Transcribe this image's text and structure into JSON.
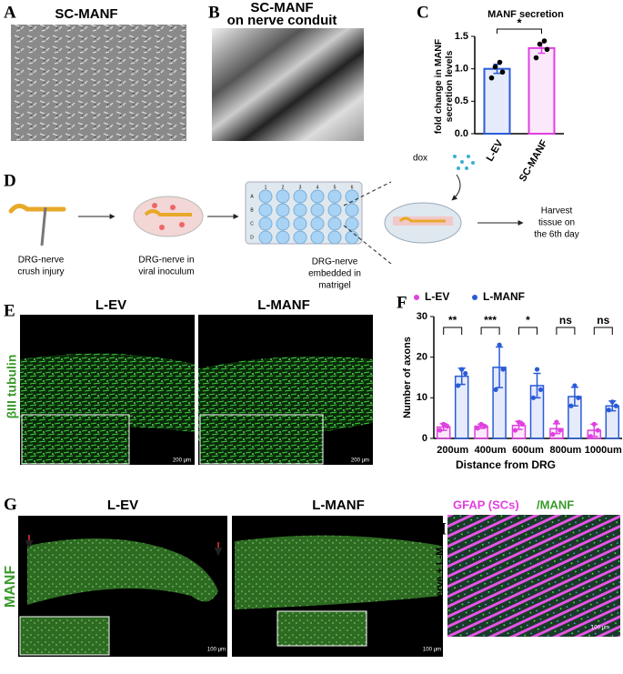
{
  "panels": {
    "A": {
      "letter": "A",
      "title": "SC-MANF"
    },
    "B": {
      "letter": "B",
      "title": [
        "SC-MANF",
        "on nerve conduit"
      ]
    },
    "C": {
      "letter": "C"
    },
    "D": {
      "letter": "D",
      "dox": "dox",
      "steps": [
        [
          "DRG-nerve",
          "crush injury"
        ],
        [
          "DRG-nerve in",
          "viral inoculum"
        ],
        [
          "DRG-nerve",
          "embedded in",
          "matrigel"
        ]
      ],
      "harvest": [
        "Harvest",
        "tissue on",
        "the 6th day"
      ],
      "plate_columns": [
        "1",
        "2",
        "3",
        "4",
        "5",
        "6"
      ],
      "plate_rows": [
        "A",
        "B",
        "C",
        "D"
      ]
    },
    "E": {
      "letter": "E",
      "titles": [
        "L-EV",
        "L-MANF"
      ],
      "stain": "βIII tubulin",
      "scale_bar": "200 μm"
    },
    "F": {
      "letter": "F"
    },
    "G": {
      "letter": "G",
      "titles": [
        "L-EV",
        "L-MANF"
      ],
      "stain": "MANF",
      "scale_bar": "100 μm"
    },
    "H": {
      "letter": "H",
      "title_parts": [
        "GFAP (SCs)",
        "/MANF"
      ],
      "side_label": "DRG-nerve + L-MANF",
      "scale_bar": "100 μm"
    }
  },
  "chart_data": [
    {
      "type": "bar",
      "title": "MANF secretion",
      "y_label": [
        "fold change in MANF",
        "secretion levels"
      ],
      "categories": [
        "L-EV",
        "SC-MANF"
      ],
      "values": [
        1.0,
        1.32
      ],
      "errors": [
        0.07,
        0.08
      ],
      "points": [
        [
          0.86,
          0.95,
          1.03,
          1.1
        ],
        [
          1.17,
          1.3,
          1.38,
          1.43
        ]
      ],
      "colors": [
        "#2a5bd7",
        "#e040e0"
      ],
      "significance": "*",
      "ylim": [
        0,
        1.5
      ],
      "yticks": [
        {
          "value": 0,
          "label": "0.0"
        },
        {
          "value": 0.5,
          "label": "0.5"
        },
        {
          "value": 1,
          "label": "1.0"
        },
        {
          "value": 1.5,
          "label": "1.5"
        }
      ]
    },
    {
      "type": "grouped_bar",
      "y_label": "Number of axons",
      "x_label": "Distance from DRG",
      "categories": [
        "200um",
        "400um",
        "600um",
        "800um",
        "1000um"
      ],
      "series": [
        {
          "name": "L-EV",
          "color": "#e040e0",
          "values": [
            2.8,
            3,
            3.2,
            2.4,
            2
          ],
          "errors": [
            0.8,
            0.5,
            1,
            1.2,
            1.5
          ],
          "points": [
            [
              2,
              3,
              3.5
            ],
            [
              2.5,
              3,
              3.5
            ],
            [
              2,
              3.5,
              4
            ],
            [
              1,
              2,
              4
            ],
            [
              0.5,
              2,
              3.5
            ]
          ]
        },
        {
          "name": "L-MANF",
          "color": "#2a5bd7",
          "values": [
            15.3,
            17.5,
            13,
            10.3,
            8
          ],
          "errors": [
            2,
            5,
            3,
            2.3,
            1.2
          ],
          "points": [
            [
              13,
              16,
              17
            ],
            [
              12,
              17,
              23
            ],
            [
              10,
              12,
              17
            ],
            [
              8,
              10,
              13
            ],
            [
              7,
              8,
              9
            ]
          ]
        }
      ],
      "significance": [
        "**",
        "***",
        "*",
        "ns",
        "ns"
      ],
      "ylim": [
        0,
        30
      ],
      "yticks": [
        0,
        10,
        20,
        30
      ]
    }
  ]
}
